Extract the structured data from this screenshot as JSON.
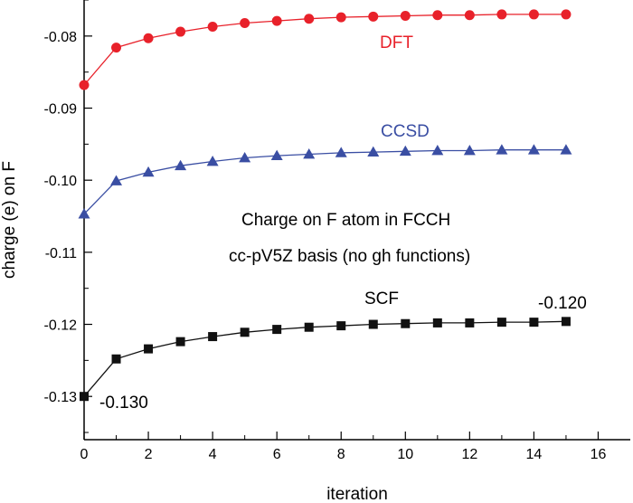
{
  "chart_data": {
    "type": "line",
    "title": "",
    "xlabel": "iteration",
    "ylabel": "charge (e) on F",
    "xlim": [
      0,
      17
    ],
    "ylim": [
      -0.136,
      -0.075
    ],
    "grid": false,
    "x_ticks": [
      0,
      2,
      4,
      6,
      8,
      10,
      12,
      14,
      16
    ],
    "x_tick_labels": [
      "0",
      "2",
      "4",
      "6",
      "8",
      "10",
      "12",
      "14",
      "16"
    ],
    "y_ticks": [
      -0.13,
      -0.12,
      -0.11,
      -0.1,
      -0.09,
      -0.08
    ],
    "y_tick_labels": [
      "-0.13",
      "-0.12",
      "-0.11",
      "-0.10",
      "-0.09",
      "-0.08"
    ],
    "x": [
      0,
      1,
      2,
      3,
      4,
      5,
      6,
      7,
      8,
      9,
      10,
      11,
      12,
      13,
      14,
      15
    ],
    "series": [
      {
        "name": "DFT",
        "color": "#e8212a",
        "marker": "circle",
        "values": [
          -0.0868,
          -0.0816,
          -0.0803,
          -0.0794,
          -0.0787,
          -0.0782,
          -0.0779,
          -0.0776,
          -0.0774,
          -0.0773,
          -0.0772,
          -0.0771,
          -0.0771,
          -0.077,
          -0.077,
          -0.077
        ]
      },
      {
        "name": "CCSD",
        "color": "#3a4ea3",
        "marker": "triangle",
        "values": [
          -0.1047,
          -0.1001,
          -0.0989,
          -0.098,
          -0.0974,
          -0.0969,
          -0.0966,
          -0.0964,
          -0.0962,
          -0.0961,
          -0.096,
          -0.0959,
          -0.0959,
          -0.0958,
          -0.0958,
          -0.0958
        ]
      },
      {
        "name": "SCF",
        "color": "#111111",
        "marker": "square",
        "values": [
          -0.13,
          -0.1248,
          -0.1234,
          -0.1224,
          -0.1217,
          -0.1211,
          -0.1207,
          -0.1204,
          -0.1202,
          -0.12,
          -0.1199,
          -0.1198,
          -0.1198,
          -0.1197,
          -0.1197,
          -0.1196
        ]
      }
    ],
    "annotations": [
      "Charge on F atom in FCCH",
      "cc-pV5Z basis (no gh functions)"
    ],
    "value_labels": {
      "start": "-0.130",
      "end": "-0.120"
    }
  }
}
